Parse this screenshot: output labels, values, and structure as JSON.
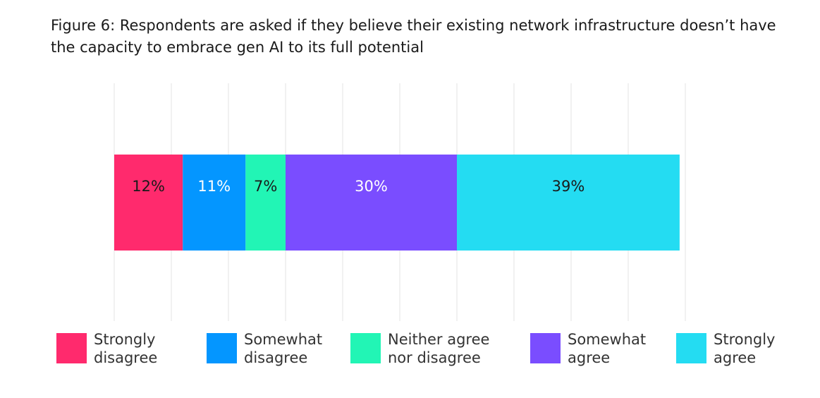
{
  "title": "Figure 6: Respondents are asked if they believe their existing network infrastructure doesn’t have the capacity to embrace gen AI to its full potential",
  "chart_data": {
    "type": "bar",
    "orientation": "horizontal",
    "stacked": true,
    "xlim": [
      0,
      100
    ],
    "grid": true,
    "legend_position": "bottom",
    "series": [
      {
        "name": "Strongly disagree",
        "legend_line1": "Strongly",
        "legend_line2": "disagree",
        "value": 12,
        "label": "12%",
        "color": "#ff2a6d",
        "label_color": "#1a1a1a"
      },
      {
        "name": "Somewhat disagree",
        "legend_line1": "Somewhat",
        "legend_line2": "disagree",
        "value": 11,
        "label": "11%",
        "color": "#0496ff",
        "label_color": "#ffffff"
      },
      {
        "name": "Neither agree nor disagree",
        "legend_line1": "Neither agree",
        "legend_line2": "nor disagree",
        "value": 7,
        "label": "7%",
        "color": "#22f5b5",
        "label_color": "#1a1a1a"
      },
      {
        "name": "Somewhat agree",
        "legend_line1": "Somewhat",
        "legend_line2": "agree",
        "value": 30,
        "label": "30%",
        "color": "#7a4dff",
        "label_color": "#ffffff"
      },
      {
        "name": "Strongly agree",
        "legend_line1": "Strongly",
        "legend_line2": "agree",
        "value": 39,
        "label": "39%",
        "color": "#24dcf2",
        "label_color": "#1a1a1a"
      }
    ]
  }
}
